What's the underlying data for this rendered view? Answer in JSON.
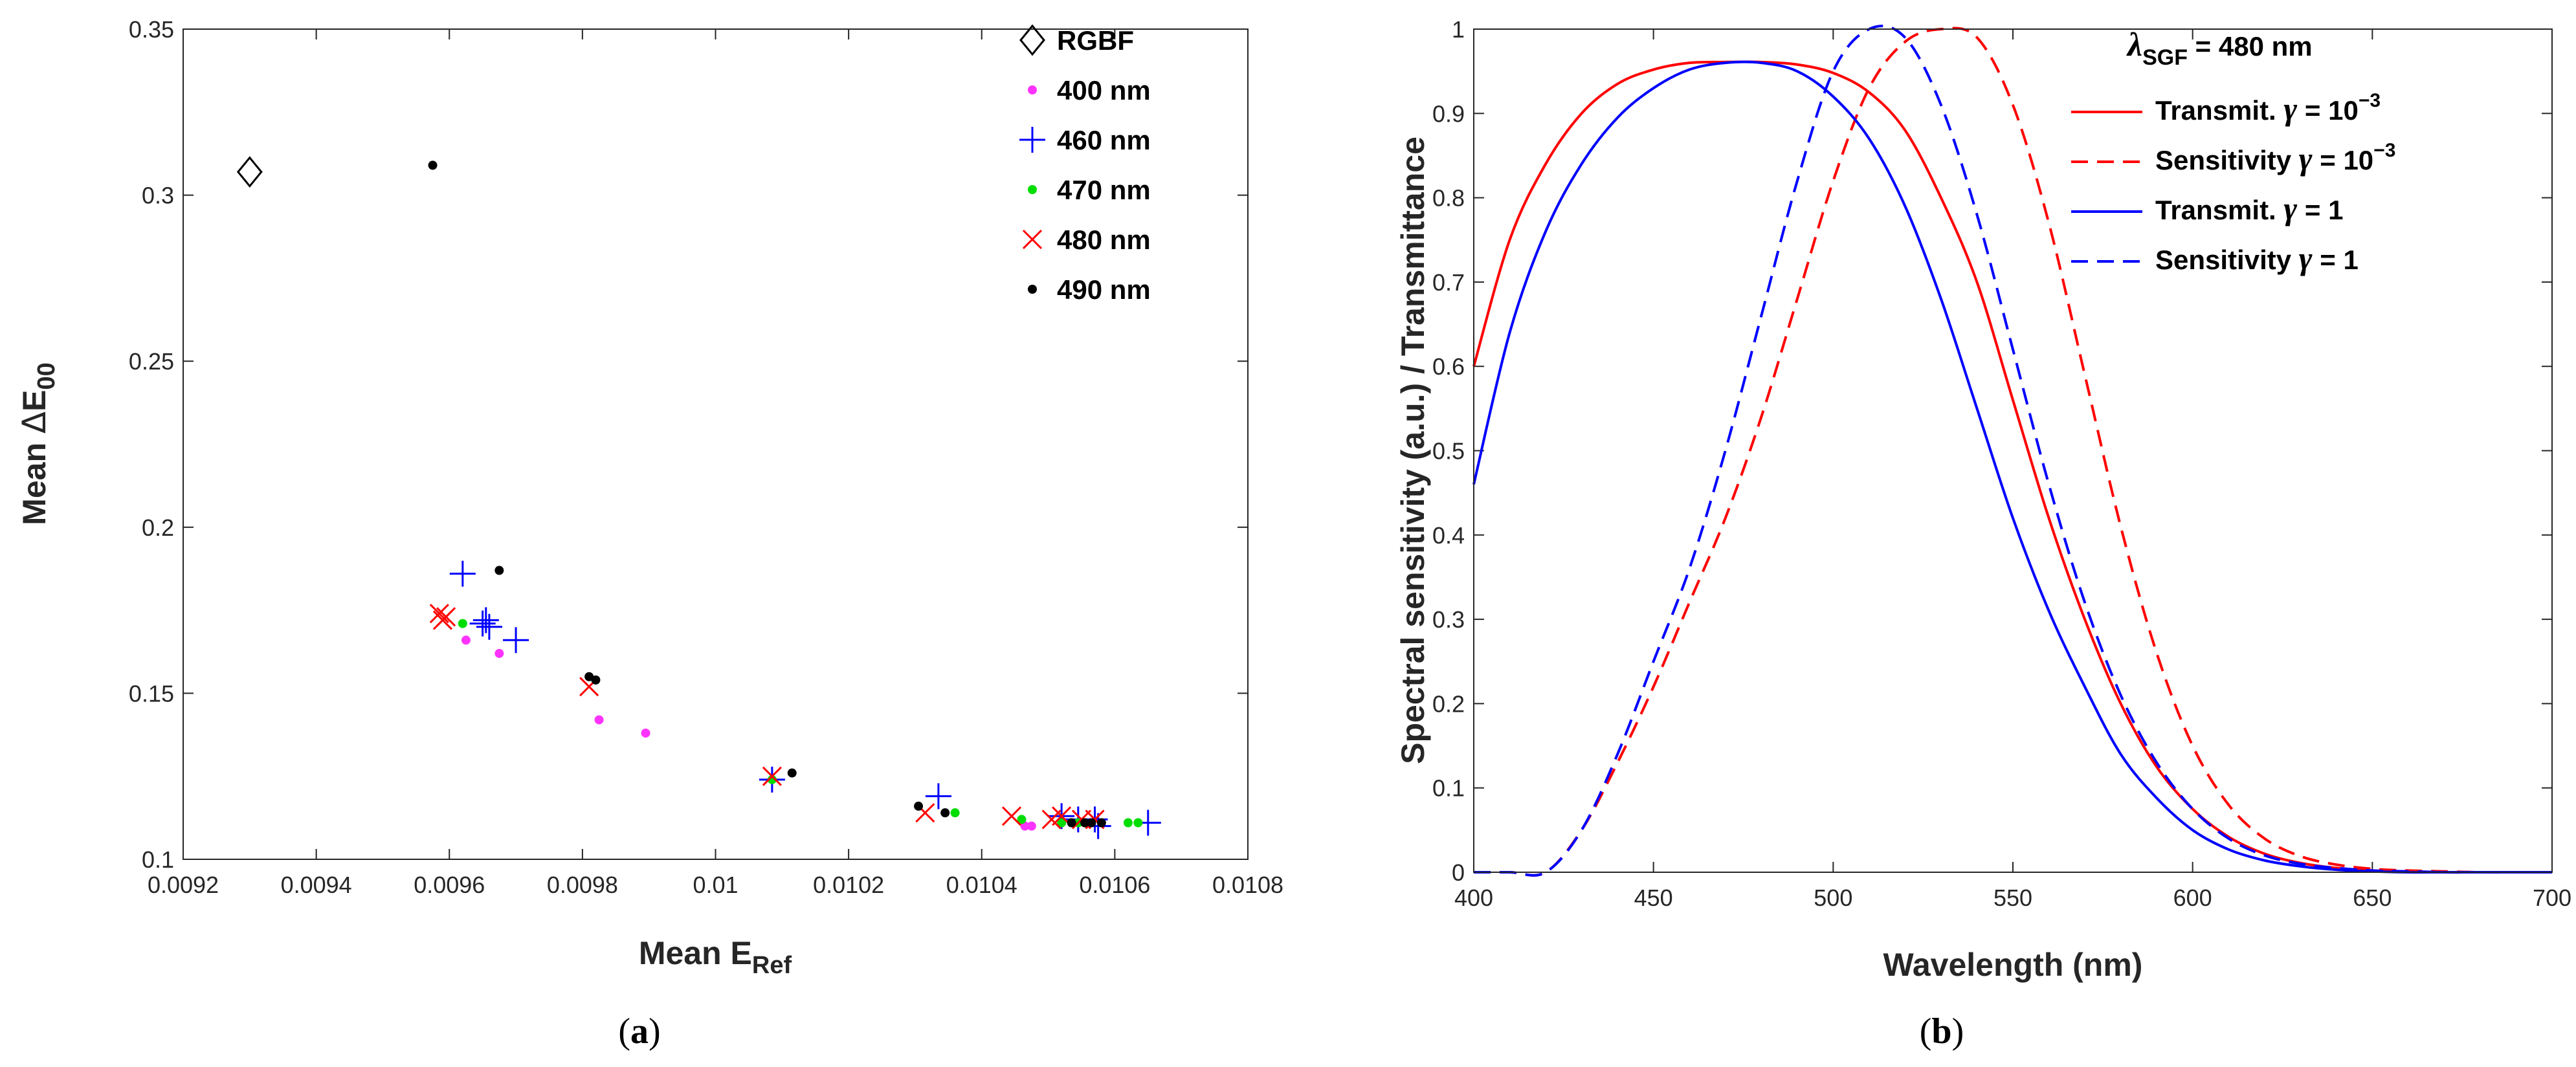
{
  "chart_data": [
    {
      "type": "scatter",
      "caption_paren_open": "(",
      "caption_letter": "a",
      "caption_paren_close": ")",
      "xlabel_main": "Mean E",
      "xlabel_sub": "Ref",
      "ylabel_main": "Mean ",
      "ylabel_delta": "Δ",
      "ylabel_E": "E",
      "ylabel_sub": "00",
      "xlim": [
        0.0092,
        0.0108
      ],
      "ylim": [
        0.1,
        0.35
      ],
      "xticks": [
        0.0092,
        0.0094,
        0.0096,
        0.0098,
        0.01,
        0.0102,
        0.0104,
        0.0106,
        0.0108
      ],
      "xtick_labels": [
        "0.0092",
        "0.0094",
        "0.0096",
        "0.0098",
        "0.01",
        "0.0102",
        "0.0104",
        "0.0106",
        "0.0108"
      ],
      "yticks": [
        0.1,
        0.15,
        0.2,
        0.25,
        0.3,
        0.35
      ],
      "ytick_labels": [
        "0.1",
        "0.15",
        "0.2",
        "0.25",
        "0.3",
        "0.35"
      ],
      "legend_position": "top-right",
      "series": [
        {
          "name": "RGBF",
          "marker": "diamond",
          "color": "#000000",
          "points": [
            [
              0.0093,
              0.307
            ]
          ]
        },
        {
          "name": "400 nm",
          "marker": "dot",
          "color": "#ff33ff",
          "points": [
            [
              0.009625,
              0.166
            ],
            [
              0.009675,
              0.162
            ],
            [
              0.009825,
              0.142
            ],
            [
              0.009895,
              0.138
            ],
            [
              0.010465,
              0.11
            ],
            [
              0.010475,
              0.11
            ]
          ]
        },
        {
          "name": "460 nm",
          "marker": "plus",
          "color": "#0000ff",
          "points": [
            [
              0.00962,
              0.186
            ],
            [
              0.00965,
              0.171
            ],
            [
              0.009655,
              0.172
            ],
            [
              0.00966,
              0.17
            ],
            [
              0.0097,
              0.166
            ],
            [
              0.010085,
              0.124
            ],
            [
              0.010335,
              0.119
            ],
            [
              0.01052,
              0.113
            ],
            [
              0.010545,
              0.112
            ],
            [
              0.01057,
              0.112
            ],
            [
              0.010575,
              0.11
            ],
            [
              0.01065,
              0.111
            ]
          ]
        },
        {
          "name": "470 nm",
          "marker": "dot",
          "color": "#00dd00",
          "points": [
            [
              0.00962,
              0.171
            ],
            [
              0.010085,
              0.124
            ],
            [
              0.01036,
              0.114
            ],
            [
              0.01046,
              0.112
            ],
            [
              0.01052,
              0.111
            ],
            [
              0.010545,
              0.111
            ],
            [
              0.01062,
              0.111
            ],
            [
              0.010635,
              0.111
            ]
          ]
        },
        {
          "name": "480 nm",
          "marker": "x",
          "color": "#ff0000",
          "points": [
            [
              0.009585,
              0.174
            ],
            [
              0.00959,
              0.172
            ],
            [
              0.009595,
              0.173
            ],
            [
              0.00981,
              0.152
            ],
            [
              0.010085,
              0.125
            ],
            [
              0.010315,
              0.114
            ],
            [
              0.010445,
              0.113
            ],
            [
              0.010505,
              0.112
            ],
            [
              0.01052,
              0.113
            ],
            [
              0.01055,
              0.112
            ],
            [
              0.01057,
              0.112
            ]
          ]
        },
        {
          "name": "490 nm",
          "marker": "dot",
          "color": "#000000",
          "points": [
            [
              0.009575,
              0.309
            ],
            [
              0.009675,
              0.187
            ],
            [
              0.00981,
              0.155
            ],
            [
              0.00982,
              0.154
            ],
            [
              0.010115,
              0.126
            ],
            [
              0.010305,
              0.116
            ],
            [
              0.010345,
              0.114
            ],
            [
              0.010535,
              0.111
            ],
            [
              0.010555,
              0.111
            ],
            [
              0.010565,
              0.111
            ],
            [
              0.01058,
              0.111
            ]
          ]
        }
      ]
    },
    {
      "type": "line",
      "caption_paren_open": "(",
      "caption_letter": "b",
      "caption_paren_close": ")",
      "xlabel": "Wavelength (nm)",
      "ylabel": "Spectral sensitivity (a.u.) / Transmittance",
      "xlim": [
        400,
        700
      ],
      "ylim": [
        0,
        1
      ],
      "xticks": [
        400,
        450,
        500,
        550,
        600,
        650,
        700
      ],
      "xtick_labels": [
        "400",
        "450",
        "500",
        "550",
        "600",
        "650",
        "700"
      ],
      "yticks": [
        0,
        0.1,
        0.2,
        0.3,
        0.4,
        0.5,
        0.6,
        0.7,
        0.8,
        0.9,
        1
      ],
      "ytick_labels": [
        "0",
        "0.1",
        "0.2",
        "0.3",
        "0.4",
        "0.5",
        "0.6",
        "0.7",
        "0.8",
        "0.9",
        "1"
      ],
      "annotation": {
        "lambda": "λ",
        "sub": "SGF",
        "rest": " = 480 nm"
      },
      "legend_position": "top-right",
      "x": [
        400,
        410,
        420,
        430,
        440,
        450,
        460,
        470,
        480,
        490,
        500,
        510,
        520,
        530,
        540,
        550,
        560,
        570,
        580,
        590,
        600,
        610,
        620,
        630,
        640,
        650,
        660,
        670,
        680,
        690,
        700
      ],
      "series": [
        {
          "label_main": "Transmit. ",
          "gamma": "γ",
          "label_eq": " = 10",
          "label_exp": "−3",
          "color": "#ff0000",
          "dash": false,
          "values": [
            0.6,
            0.75,
            0.84,
            0.9,
            0.935,
            0.952,
            0.96,
            0.961,
            0.961,
            0.958,
            0.948,
            0.925,
            0.88,
            0.8,
            0.7,
            0.56,
            0.42,
            0.3,
            0.2,
            0.125,
            0.075,
            0.042,
            0.022,
            0.011,
            0.005,
            0.002,
            0.001,
            0.0,
            0.0,
            0.0,
            0.0
          ]
        },
        {
          "label_main": "Sensitivity ",
          "gamma": "γ",
          "label_eq": " = 10",
          "label_exp": "−3",
          "color": "#ff0000",
          "dash": true,
          "values": [
            0.0,
            0.0,
            0.0,
            0.05,
            0.13,
            0.22,
            0.32,
            0.42,
            0.54,
            0.68,
            0.82,
            0.93,
            0.985,
            1.0,
            0.99,
            0.91,
            0.77,
            0.59,
            0.41,
            0.26,
            0.15,
            0.08,
            0.04,
            0.019,
            0.009,
            0.004,
            0.002,
            0.001,
            0.0,
            0.0,
            0.0
          ]
        },
        {
          "label_main": "Transmit. ",
          "gamma": "γ",
          "label_eq": " = 1",
          "label_exp": "",
          "color": "#0000ff",
          "dash": false,
          "values": [
            0.46,
            0.64,
            0.76,
            0.84,
            0.895,
            0.93,
            0.952,
            0.96,
            0.96,
            0.95,
            0.92,
            0.87,
            0.79,
            0.68,
            0.55,
            0.42,
            0.31,
            0.22,
            0.14,
            0.088,
            0.05,
            0.027,
            0.014,
            0.007,
            0.003,
            0.001,
            0.0,
            0.0,
            0.0,
            0.0,
            0.0
          ]
        },
        {
          "label_main": "Sensitivity ",
          "gamma": "γ",
          "label_eq": " = 1",
          "label_exp": "",
          "color": "#0000ff",
          "dash": true,
          "values": [
            0.0,
            0.0,
            0.0,
            0.05,
            0.14,
            0.25,
            0.36,
            0.5,
            0.66,
            0.82,
            0.95,
            1.0,
            0.99,
            0.91,
            0.78,
            0.62,
            0.46,
            0.32,
            0.21,
            0.13,
            0.075,
            0.04,
            0.02,
            0.01,
            0.005,
            0.002,
            0.001,
            0.0,
            0.0,
            0.0,
            0.0
          ]
        }
      ]
    }
  ]
}
